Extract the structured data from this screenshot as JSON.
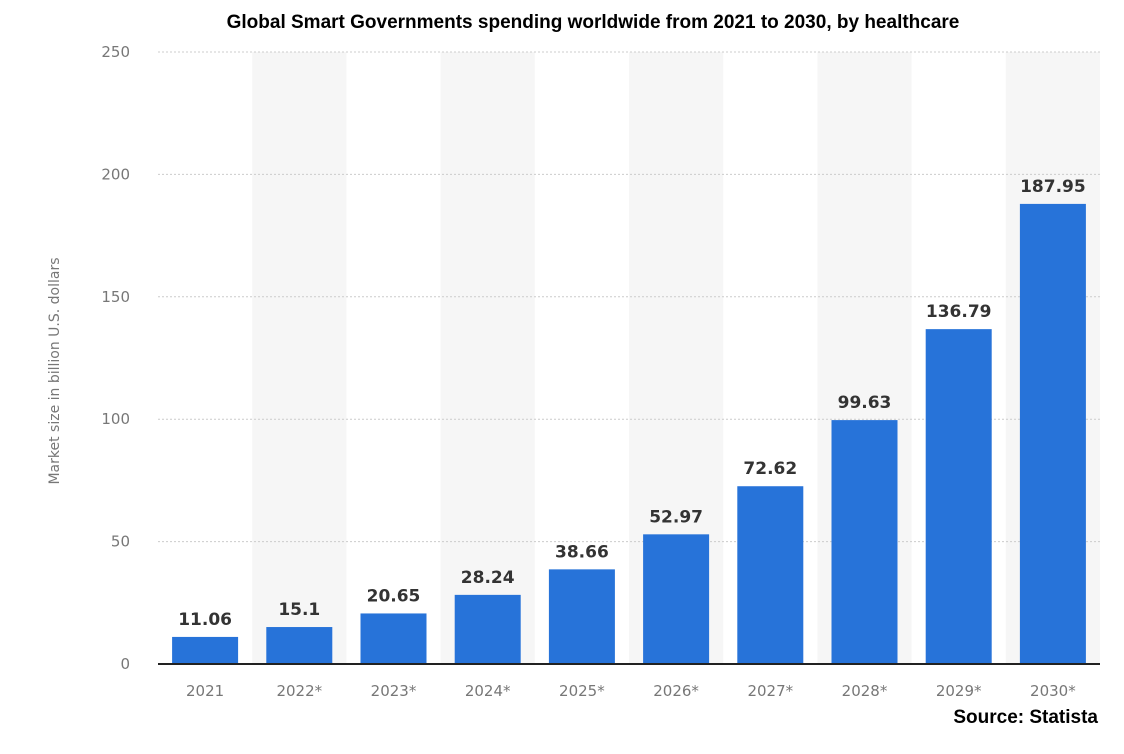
{
  "chart_data": {
    "type": "bar",
    "title": "Global Smart Governments spending worldwide from 2021 to 2030, by healthcare",
    "xlabel": "",
    "ylabel": "Market size in billion U.S. dollars",
    "categories": [
      "2021",
      "2022*",
      "2023*",
      "2024*",
      "2025*",
      "2026*",
      "2027*",
      "2028*",
      "2029*",
      "2030*"
    ],
    "values": [
      11.06,
      15.1,
      20.65,
      28.24,
      38.66,
      52.97,
      72.62,
      99.63,
      136.79,
      187.95
    ],
    "value_labels": [
      "11.06",
      "15.1",
      "20.65",
      "28.24",
      "38.66",
      "52.97",
      "72.62",
      "99.63",
      "136.79",
      "187.95"
    ],
    "ylim": [
      0,
      250
    ],
    "yticks": [
      0,
      50,
      100,
      150,
      200,
      250
    ],
    "grid": true,
    "bar_color": "#2773d9",
    "band_color": "#f6f6f6",
    "source": "Source: Statista"
  }
}
